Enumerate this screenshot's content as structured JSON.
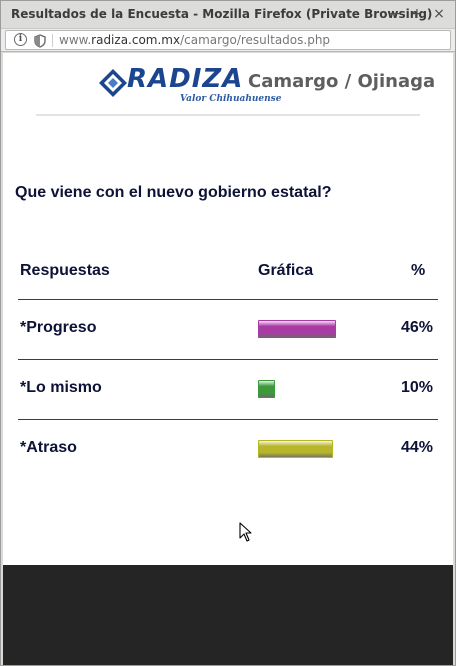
{
  "window": {
    "title": "Resultados de la Encuesta - Mozilla Firefox (Private Browsing)",
    "minimize_label": "−",
    "maximize_label": "+",
    "close_label": "×"
  },
  "navbar": {
    "url_prefix": "www.",
    "url_domain": "radiza.com.mx",
    "url_path": "/camargo/resultados.php"
  },
  "brand": {
    "logo_text": "RADIZA",
    "tagline": "Valor Chihuahuense",
    "cities": "Camargo / Ojinaga"
  },
  "poll": {
    "question": "Que viene con el nuevo gobierno estatal?",
    "headers": {
      "answers": "Respuestas",
      "chart": "Gráfica",
      "percent": "%"
    },
    "rows": [
      {
        "label": "*Progreso",
        "percent": "46%",
        "value": 46,
        "color": "#a93ba4"
      },
      {
        "label": "*Lo mismo",
        "percent": "10%",
        "value": 10,
        "color": "#3c9a3a"
      },
      {
        "label": "*Atraso",
        "percent": "44%",
        "value": 44,
        "color": "#b7b52a"
      }
    ]
  },
  "colors": {
    "logo_blue": "#1c4590",
    "text_dark": "#0d1236",
    "footer": "#252525"
  }
}
